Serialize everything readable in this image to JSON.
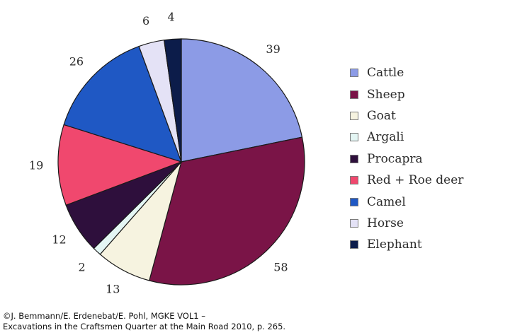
{
  "chart_data": {
    "type": "pie",
    "categories": [
      "Cattle",
      "Sheep",
      "Goat",
      "Argali",
      "Procapra",
      "Red + Roe deer",
      "Camel",
      "Horse",
      "Elephant"
    ],
    "values": [
      39,
      58,
      13,
      2,
      12,
      19,
      26,
      6,
      4
    ],
    "colors": [
      "#8c9be6",
      "#7a1447",
      "#f6f3e0",
      "#e4f6f4",
      "#2e0f3c",
      "#f0486e",
      "#1f58c4",
      "#e4e2f6",
      "#0c1c4a"
    ],
    "start_angle_deg": 0,
    "direction": "clockwise",
    "legend_position": "right"
  },
  "credit": {
    "line1": "©J. Bemmann/E. Erdenebat/E. Pohl, MGKE VOL1 –",
    "line2": "Excavations in the Craftsmen Quarter at the Main Road 2010, p. 265."
  }
}
